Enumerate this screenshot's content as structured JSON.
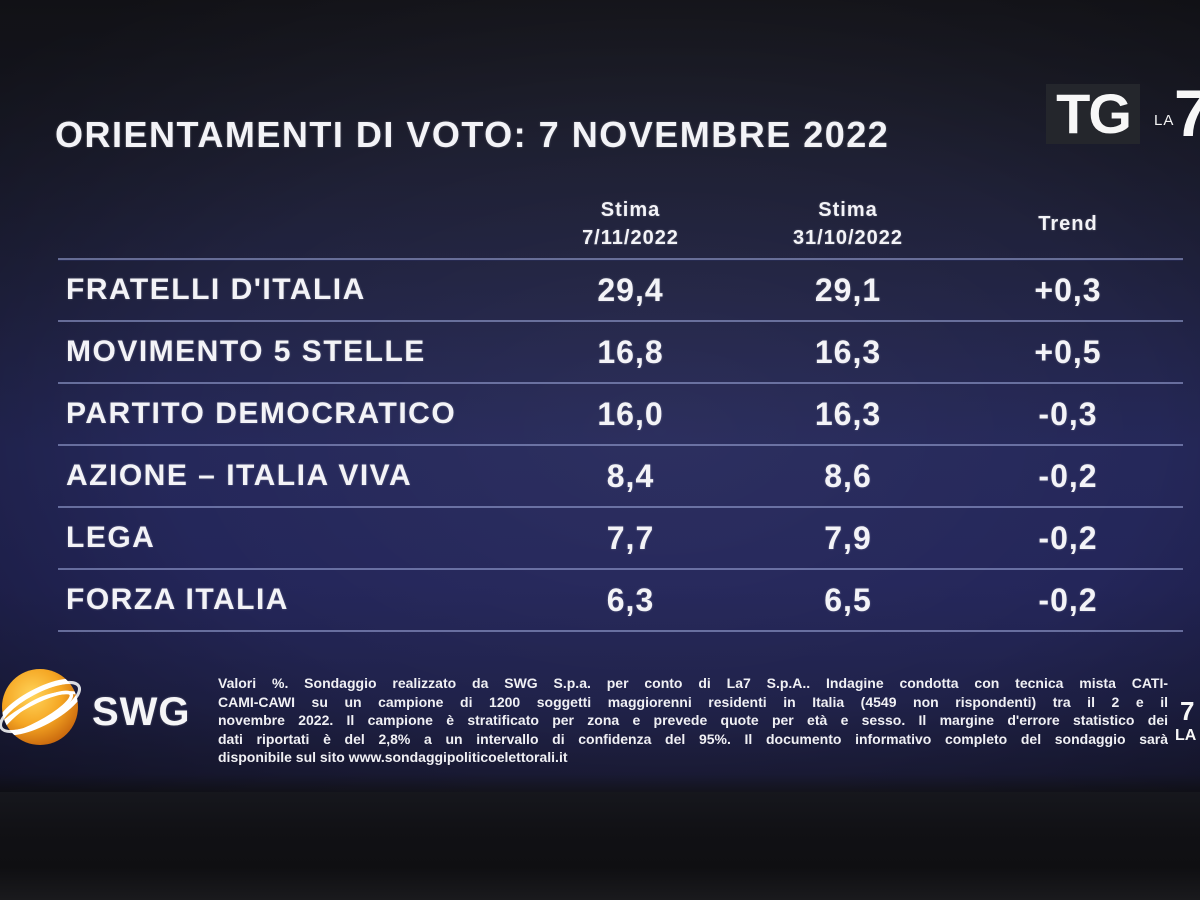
{
  "colors": {
    "background": "#24265a",
    "text": "#f3f3f7",
    "rule": "#96a0d2",
    "swg_orange": "#f5a623"
  },
  "logo_top": {
    "tg": "TG",
    "la": "LA",
    "seven": "7"
  },
  "chart_data": {
    "type": "table",
    "title": "ORIENTAMENTI DI VOTO: 7 NOVEMBRE 2022",
    "header": [
      {
        "line1": "Stima",
        "line2": "7/11/2022"
      },
      {
        "line1": "Stima",
        "line2": "31/10/2022"
      },
      {
        "line1": "Trend"
      }
    ],
    "rows": [
      {
        "label": "FRATELLI D'ITALIA",
        "cells": [
          "29,4",
          "29,1",
          "+0,3"
        ],
        "values": [
          29.4,
          29.1,
          0.3
        ]
      },
      {
        "label": "MOVIMENTO 5 STELLE",
        "cells": [
          "16,8",
          "16,3",
          "+0,5"
        ],
        "values": [
          16.8,
          16.3,
          0.5
        ]
      },
      {
        "label": "PARTITO DEMOCRATICO",
        "cells": [
          "16,0",
          "16,3",
          "-0,3"
        ],
        "values": [
          16.0,
          16.3,
          -0.3
        ]
      },
      {
        "label": "AZIONE – ITALIA VIVA",
        "cells": [
          "8,4",
          "8,6",
          "-0,2"
        ],
        "values": [
          8.4,
          8.6,
          -0.2
        ]
      },
      {
        "label": "LEGA",
        "cells": [
          "7,7",
          "7,9",
          "-0,2"
        ],
        "values": [
          7.7,
          7.9,
          -0.2
        ]
      },
      {
        "label": "FORZA ITALIA",
        "cells": [
          "6,3",
          "6,5",
          "-0,2"
        ],
        "values": [
          6.3,
          6.5,
          -0.2
        ]
      }
    ]
  },
  "swg_logo": {
    "text": "SWG"
  },
  "footer": {
    "lines": [
      "Valori %. Sondaggio realizzato da SWG S.p.a. per conto di La7 S.p.A.. Indagine condotta con tecnica mista CATI-",
      "CAMI-CAWI su un campione di 1200 soggetti maggiorenni residenti in Italia (4549 non rispondenti) tra il 2 e il",
      "novembre 2022. Il campione è stratificato per zona e prevede quote per età e sesso. Il margine d'errore statistico dei",
      "dati riportati è del 2,8% a un intervallo di confidenza del 95%. Il documento informativo completo del sondaggio sarà",
      "disponibile sul sito www.sondaggipoliticoelettorali.it"
    ]
  },
  "logo_bottom": {
    "la": "LA",
    "seven": "7"
  }
}
